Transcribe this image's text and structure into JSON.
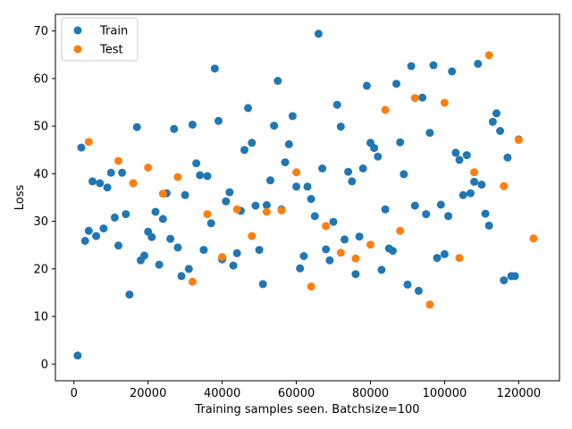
{
  "chart_data": {
    "type": "scatter",
    "title": "",
    "xlabel": "Training samples seen. Batchsize=100",
    "ylabel": "Loss",
    "xlim": [
      -5000,
      131000
    ],
    "ylim": [
      -3.5,
      73.5
    ],
    "xticks": [
      0,
      20000,
      40000,
      60000,
      80000,
      100000,
      120000
    ],
    "yticks": [
      0,
      10,
      20,
      30,
      40,
      50,
      60,
      70
    ],
    "legend": {
      "position": "top-left",
      "entries": [
        "Train",
        "Test"
      ]
    },
    "series": [
      {
        "name": "Train",
        "color": "#1f77b4",
        "points": [
          [
            1000,
            1.8
          ],
          [
            2000,
            45.5
          ],
          [
            3000,
            25.9
          ],
          [
            4000,
            28.0
          ],
          [
            5000,
            38.4
          ],
          [
            6000,
            26.9
          ],
          [
            7000,
            38.0
          ],
          [
            8000,
            28.5
          ],
          [
            9000,
            37.1
          ],
          [
            10000,
            40.2
          ],
          [
            11000,
            30.8
          ],
          [
            12000,
            24.9
          ],
          [
            13000,
            40.2
          ],
          [
            14000,
            31.5
          ],
          [
            15000,
            14.6
          ],
          [
            16000,
            38.0
          ],
          [
            17000,
            49.8
          ],
          [
            18000,
            21.8
          ],
          [
            19000,
            22.8
          ],
          [
            20000,
            27.8
          ],
          [
            21000,
            26.7
          ],
          [
            22000,
            32.0
          ],
          [
            23000,
            20.9
          ],
          [
            24000,
            30.5
          ],
          [
            25000,
            35.9
          ],
          [
            26000,
            26.3
          ],
          [
            27000,
            49.4
          ],
          [
            28000,
            24.5
          ],
          [
            29000,
            18.5
          ],
          [
            30000,
            35.5
          ],
          [
            31000,
            20.0
          ],
          [
            32000,
            50.3
          ],
          [
            33000,
            42.2
          ],
          [
            34000,
            39.7
          ],
          [
            35000,
            24.0
          ],
          [
            36000,
            39.5
          ],
          [
            37000,
            29.6
          ],
          [
            38000,
            62.1
          ],
          [
            39000,
            51.1
          ],
          [
            40000,
            22.0
          ],
          [
            41000,
            34.2
          ],
          [
            42000,
            36.1
          ],
          [
            43000,
            20.7
          ],
          [
            44000,
            23.3
          ],
          [
            45000,
            32.2
          ],
          [
            46000,
            45.0
          ],
          [
            47000,
            53.8
          ],
          [
            48000,
            46.5
          ],
          [
            49000,
            33.3
          ],
          [
            50000,
            24.0
          ],
          [
            51000,
            16.8
          ],
          [
            52000,
            33.4
          ],
          [
            53000,
            38.6
          ],
          [
            54000,
            50.1
          ],
          [
            55000,
            59.5
          ],
          [
            56000,
            32.5
          ],
          [
            57000,
            42.4
          ],
          [
            58000,
            46.2
          ],
          [
            59000,
            52.1
          ],
          [
            60000,
            37.3
          ],
          [
            61000,
            20.1
          ],
          [
            62000,
            22.7
          ],
          [
            63000,
            37.3
          ],
          [
            64000,
            34.7
          ],
          [
            65000,
            31.1
          ],
          [
            66000,
            69.4
          ],
          [
            67000,
            41.1
          ],
          [
            68000,
            24.1
          ],
          [
            69000,
            21.8
          ],
          [
            70000,
            29.9
          ],
          [
            71000,
            54.5
          ],
          [
            72000,
            49.9
          ],
          [
            73000,
            26.2
          ],
          [
            74000,
            40.4
          ],
          [
            75000,
            38.4
          ],
          [
            76000,
            18.9
          ],
          [
            77000,
            26.8
          ],
          [
            78000,
            41.1
          ],
          [
            79000,
            58.5
          ],
          [
            80000,
            46.5
          ],
          [
            81000,
            45.4
          ],
          [
            82000,
            43.6
          ],
          [
            83000,
            19.8
          ],
          [
            84000,
            32.5
          ],
          [
            85000,
            24.3
          ],
          [
            86000,
            23.8
          ],
          [
            87000,
            58.9
          ],
          [
            88000,
            46.6
          ],
          [
            89000,
            39.9
          ],
          [
            90000,
            16.7
          ],
          [
            91000,
            62.6
          ],
          [
            92000,
            33.3
          ],
          [
            93000,
            15.4
          ],
          [
            94000,
            56.0
          ],
          [
            95000,
            31.5
          ],
          [
            96000,
            48.6
          ],
          [
            97000,
            62.8
          ],
          [
            98000,
            22.3
          ],
          [
            99000,
            33.5
          ],
          [
            100000,
            23.1
          ],
          [
            101000,
            31.1
          ],
          [
            102000,
            61.5
          ],
          [
            103000,
            44.4
          ],
          [
            104000,
            42.9
          ],
          [
            105000,
            35.5
          ],
          [
            106000,
            43.9
          ],
          [
            107000,
            35.9
          ],
          [
            108000,
            38.3
          ],
          [
            109000,
            63.1
          ],
          [
            110000,
            37.7
          ],
          [
            111000,
            31.6
          ],
          [
            112000,
            29.1
          ],
          [
            113000,
            50.9
          ],
          [
            114000,
            52.7
          ],
          [
            115000,
            49.0
          ],
          [
            116000,
            17.6
          ],
          [
            117000,
            43.4
          ],
          [
            118000,
            18.5
          ],
          [
            119000,
            18.5
          ],
          [
            120000,
            47.2
          ]
        ]
      },
      {
        "name": "Test",
        "color": "#ff7f0e",
        "points": [
          [
            4000,
            46.7
          ],
          [
            12000,
            42.7
          ],
          [
            16000,
            38.0
          ],
          [
            20000,
            41.3
          ],
          [
            24000,
            35.8
          ],
          [
            28000,
            39.3
          ],
          [
            32000,
            17.3
          ],
          [
            36000,
            31.5
          ],
          [
            40000,
            22.5
          ],
          [
            44000,
            32.5
          ],
          [
            48000,
            26.9
          ],
          [
            52000,
            32.0
          ],
          [
            56000,
            32.3
          ],
          [
            60000,
            40.3
          ],
          [
            64000,
            16.3
          ],
          [
            68000,
            29.0
          ],
          [
            72000,
            23.4
          ],
          [
            76000,
            22.2
          ],
          [
            80000,
            25.1
          ],
          [
            84000,
            53.4
          ],
          [
            88000,
            28.0
          ],
          [
            92000,
            55.9
          ],
          [
            96000,
            12.5
          ],
          [
            100000,
            54.9
          ],
          [
            104000,
            22.3
          ],
          [
            108000,
            40.3
          ],
          [
            112000,
            64.9
          ],
          [
            116000,
            37.4
          ],
          [
            120000,
            47.1
          ],
          [
            124000,
            26.4
          ]
        ]
      }
    ]
  }
}
